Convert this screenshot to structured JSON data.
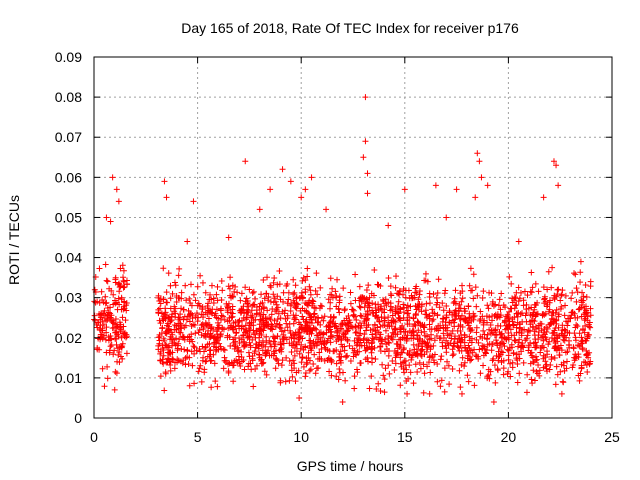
{
  "chart_data": {
    "type": "scatter",
    "title": "Day 165 of 2018, Rate Of TEC Index for receiver p176",
    "xlabel": "GPS time / hours",
    "ylabel": "ROTI / TECUs",
    "xlim": [
      0,
      25
    ],
    "ylim": [
      0,
      0.09
    ],
    "x_ticks": [
      0,
      5,
      10,
      15,
      20,
      25
    ],
    "x_tick_labels": [
      "0",
      "5",
      "10",
      "15",
      "20",
      "25"
    ],
    "y_ticks": [
      0,
      0.01,
      0.02,
      0.03,
      0.04,
      0.05,
      0.06,
      0.07,
      0.08,
      0.09
    ],
    "y_tick_labels": [
      "0",
      "0.01",
      "0.02",
      "0.03",
      "0.04",
      "0.05",
      "0.06",
      "0.07",
      "0.08",
      "0.09"
    ],
    "grid": true,
    "marker": "+",
    "color": "#ff0000",
    "data_gaps_hours": [
      [
        1.6,
        3.1
      ]
    ],
    "series": [
      {
        "name": "ROTI",
        "core_density": [
          {
            "x_start": 0.0,
            "x_end": 1.6,
            "y_min": 0.007,
            "y_max": 0.04
          },
          {
            "x_start": 3.1,
            "x_end": 24.0,
            "y_min": 0.006,
            "y_max": 0.037
          }
        ],
        "points": [
          [
            0.9,
            0.06
          ],
          [
            1.1,
            0.057
          ],
          [
            0.6,
            0.05
          ],
          [
            0.8,
            0.049
          ],
          [
            1.2,
            0.054
          ],
          [
            3.4,
            0.059
          ],
          [
            3.5,
            0.055
          ],
          [
            4.8,
            0.054
          ],
          [
            7.3,
            0.064
          ],
          [
            8.5,
            0.057
          ],
          [
            9.1,
            0.062
          ],
          [
            9.5,
            0.059
          ],
          [
            10.2,
            0.057
          ],
          [
            10.5,
            0.06
          ],
          [
            11.2,
            0.052
          ],
          [
            13.1,
            0.08
          ],
          [
            13.1,
            0.069
          ],
          [
            13.0,
            0.065
          ],
          [
            13.2,
            0.061
          ],
          [
            13.2,
            0.056
          ],
          [
            15.0,
            0.057
          ],
          [
            16.5,
            0.058
          ],
          [
            17.5,
            0.057
          ],
          [
            18.5,
            0.066
          ],
          [
            18.6,
            0.064
          ],
          [
            18.7,
            0.06
          ],
          [
            18.4,
            0.055
          ],
          [
            21.7,
            0.055
          ],
          [
            22.2,
            0.064
          ],
          [
            22.3,
            0.063
          ],
          [
            22.4,
            0.058
          ],
          [
            19.0,
            0.058
          ],
          [
            17.0,
            0.05
          ],
          [
            20.5,
            0.044
          ],
          [
            23.5,
            0.039
          ],
          [
            10.0,
            0.055
          ],
          [
            8.0,
            0.052
          ],
          [
            6.5,
            0.045
          ],
          [
            4.5,
            0.044
          ],
          [
            14.2,
            0.048
          ],
          [
            9.9,
            0.005
          ],
          [
            12.0,
            0.004
          ],
          [
            19.3,
            0.004
          ],
          [
            1.0,
            0.007
          ],
          [
            16.2,
            0.006
          ]
        ]
      }
    ]
  }
}
